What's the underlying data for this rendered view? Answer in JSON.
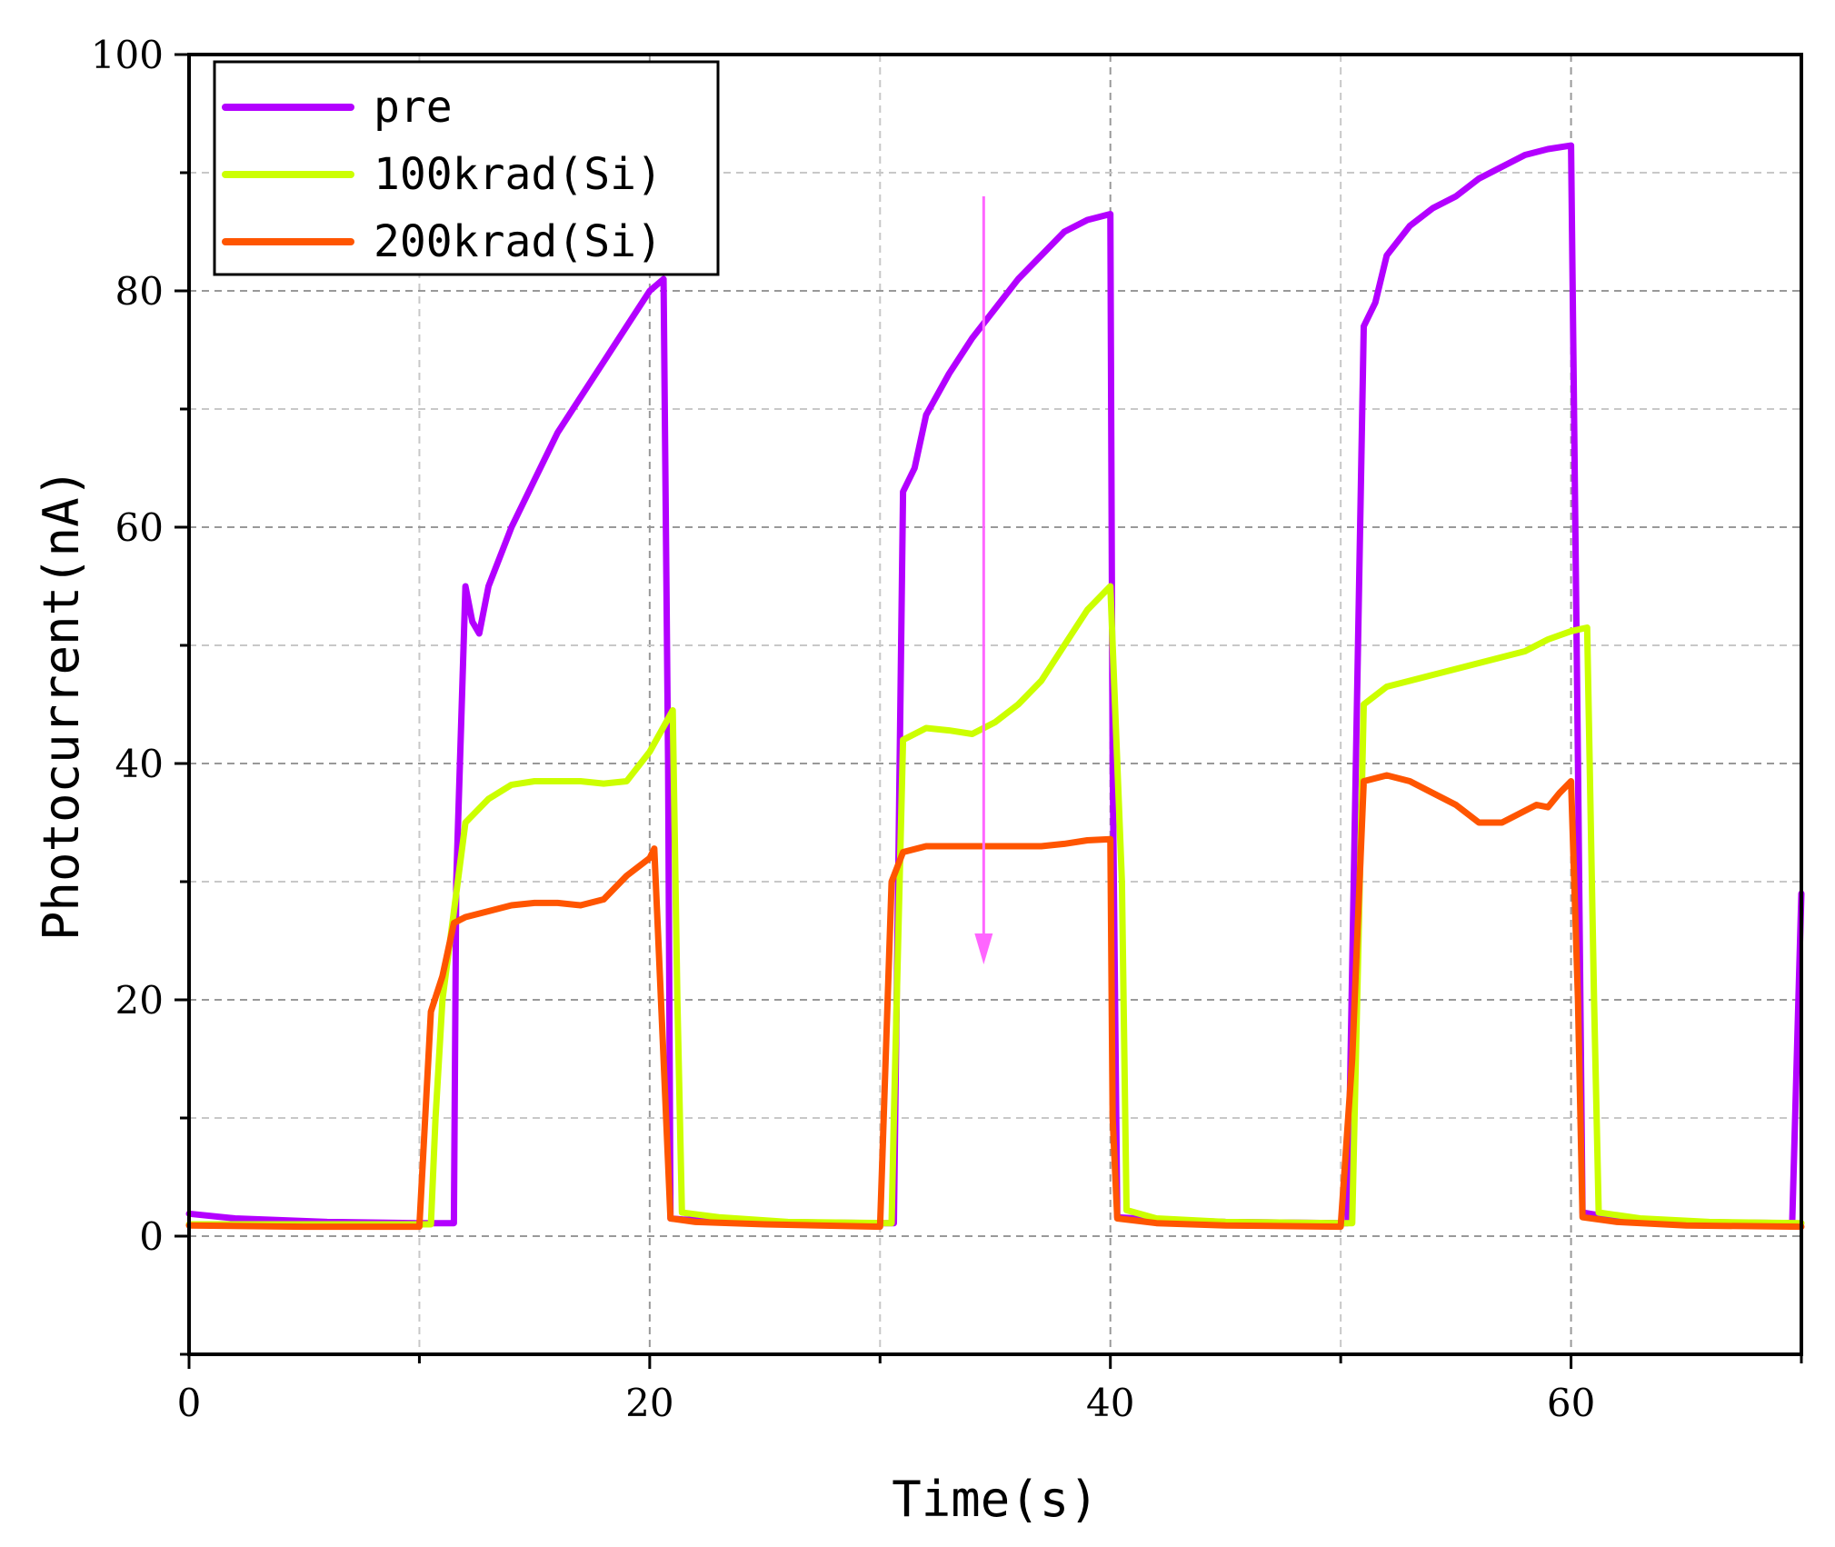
{
  "chart_data": {
    "type": "line",
    "title": "",
    "xlabel": "Time(s)",
    "ylabel": "Photocurrent(nA)",
    "xlim": [
      0,
      70
    ],
    "ylim": [
      -10,
      100
    ],
    "xticks": [
      0,
      20,
      40,
      60
    ],
    "yticks": [
      0,
      20,
      40,
      60,
      80,
      100
    ],
    "x_minor_step": 10,
    "y_minor_step": 10,
    "grid": true,
    "legend_position": "top-left",
    "series": [
      {
        "name": "pre",
        "color": "#b300ff",
        "points": [
          [
            0,
            1.9
          ],
          [
            2,
            1.5
          ],
          [
            6,
            1.2
          ],
          [
            10,
            1.1
          ],
          [
            11.5,
            1.1
          ],
          [
            11.6,
            30
          ],
          [
            12,
            55
          ],
          [
            12.3,
            52
          ],
          [
            12.6,
            51
          ],
          [
            13,
            55
          ],
          [
            14,
            60
          ],
          [
            15,
            64
          ],
          [
            16,
            68
          ],
          [
            17,
            71
          ],
          [
            18,
            74
          ],
          [
            19,
            77
          ],
          [
            20,
            80
          ],
          [
            20.6,
            81
          ],
          [
            20.8,
            40
          ],
          [
            20.9,
            1.5
          ],
          [
            21.5,
            1.4
          ],
          [
            25,
            1.2
          ],
          [
            30,
            1.1
          ],
          [
            30.6,
            1.1
          ],
          [
            31,
            63
          ],
          [
            31.5,
            65
          ],
          [
            32,
            69.5
          ],
          [
            33,
            73
          ],
          [
            34,
            76
          ],
          [
            35,
            78.5
          ],
          [
            36,
            81
          ],
          [
            37,
            83
          ],
          [
            38,
            85
          ],
          [
            39,
            86
          ],
          [
            40,
            86.5
          ],
          [
            40.1,
            40
          ],
          [
            40.3,
            1.6
          ],
          [
            42,
            1.4
          ],
          [
            45,
            1.2
          ],
          [
            50,
            1.1
          ],
          [
            50.3,
            1.1
          ],
          [
            51,
            77
          ],
          [
            51.5,
            79
          ],
          [
            52,
            83
          ],
          [
            53,
            85.5
          ],
          [
            54,
            87
          ],
          [
            55,
            88
          ],
          [
            56,
            89.5
          ],
          [
            57,
            90.5
          ],
          [
            58,
            91.5
          ],
          [
            59,
            92
          ],
          [
            60,
            92.3
          ],
          [
            60.3,
            40
          ],
          [
            60.5,
            2
          ],
          [
            62,
            1.5
          ],
          [
            65,
            1.2
          ],
          [
            69.6,
            1.1
          ],
          [
            70,
            29
          ]
        ]
      },
      {
        "name": "100krad(Si)",
        "color": "#ccff00",
        "points": [
          [
            0,
            1
          ],
          [
            5,
            1
          ],
          [
            10.5,
            1
          ],
          [
            10.7,
            10
          ],
          [
            11,
            20
          ],
          [
            12,
            35
          ],
          [
            13,
            37
          ],
          [
            14,
            38.2
          ],
          [
            15,
            38.5
          ],
          [
            16,
            38.5
          ],
          [
            17,
            38.5
          ],
          [
            18,
            38.3
          ],
          [
            19,
            38.5
          ],
          [
            20,
            41
          ],
          [
            21,
            44.5
          ],
          [
            21.2,
            20
          ],
          [
            21.4,
            2
          ],
          [
            23,
            1.6
          ],
          [
            26,
            1.2
          ],
          [
            30.5,
            1.1
          ],
          [
            30.6,
            10
          ],
          [
            31,
            42
          ],
          [
            32,
            43
          ],
          [
            33,
            42.8
          ],
          [
            34,
            42.5
          ],
          [
            35,
            43.5
          ],
          [
            36,
            45
          ],
          [
            37,
            47
          ],
          [
            38,
            50
          ],
          [
            39,
            53
          ],
          [
            40,
            55
          ],
          [
            40.5,
            30
          ],
          [
            40.7,
            2.2
          ],
          [
            42,
            1.5
          ],
          [
            45,
            1.2
          ],
          [
            50,
            1.1
          ],
          [
            50.5,
            1.1
          ],
          [
            51,
            45
          ],
          [
            52,
            46.5
          ],
          [
            53,
            47
          ],
          [
            54,
            47.5
          ],
          [
            55,
            48
          ],
          [
            56,
            48.5
          ],
          [
            57,
            49
          ],
          [
            58,
            49.5
          ],
          [
            59,
            50.5
          ],
          [
            60,
            51.2
          ],
          [
            60.7,
            51.5
          ],
          [
            61,
            20
          ],
          [
            61.2,
            2
          ],
          [
            63,
            1.5
          ],
          [
            66,
            1.2
          ],
          [
            70,
            1.1
          ]
        ]
      },
      {
        "name": "200krad(Si)",
        "color": "#ff5500",
        "points": [
          [
            0,
            0.9
          ],
          [
            5,
            0.8
          ],
          [
            10,
            0.8
          ],
          [
            10.5,
            19
          ],
          [
            11,
            22
          ],
          [
            11.5,
            26.5
          ],
          [
            12,
            27
          ],
          [
            13,
            27.5
          ],
          [
            14,
            28
          ],
          [
            15,
            28.2
          ],
          [
            16,
            28.2
          ],
          [
            17,
            28
          ],
          [
            18,
            28.5
          ],
          [
            19,
            30.5
          ],
          [
            20,
            32
          ],
          [
            20.2,
            32.8
          ],
          [
            20.6,
            15
          ],
          [
            20.9,
            1.5
          ],
          [
            22,
            1.2
          ],
          [
            25,
            1
          ],
          [
            30,
            0.8
          ],
          [
            30.5,
            30
          ],
          [
            31,
            32.5
          ],
          [
            32,
            33
          ],
          [
            33,
            33
          ],
          [
            34,
            33
          ],
          [
            35,
            33
          ],
          [
            36,
            33
          ],
          [
            37,
            33
          ],
          [
            38,
            33.2
          ],
          [
            39,
            33.5
          ],
          [
            40,
            33.6
          ],
          [
            40.1,
            10
          ],
          [
            40.3,
            1.5
          ],
          [
            42,
            1.1
          ],
          [
            45,
            0.9
          ],
          [
            50,
            0.8
          ],
          [
            50.5,
            15
          ],
          [
            51,
            38.5
          ],
          [
            52,
            39
          ],
          [
            53,
            38.5
          ],
          [
            54,
            37.5
          ],
          [
            55,
            36.5
          ],
          [
            56,
            35
          ],
          [
            57,
            35
          ],
          [
            58,
            36
          ],
          [
            58.5,
            36.5
          ],
          [
            59,
            36.3
          ],
          [
            59.5,
            37.5
          ],
          [
            60,
            38.5
          ],
          [
            60.3,
            20
          ],
          [
            60.5,
            1.6
          ],
          [
            62,
            1.2
          ],
          [
            65,
            0.9
          ],
          [
            70,
            0.8
          ]
        ]
      }
    ],
    "annotations": [
      {
        "type": "arrow",
        "color": "#ff66ff",
        "from": [
          34.5,
          88
        ],
        "to": [
          34.5,
          23
        ],
        "label": ""
      }
    ]
  }
}
